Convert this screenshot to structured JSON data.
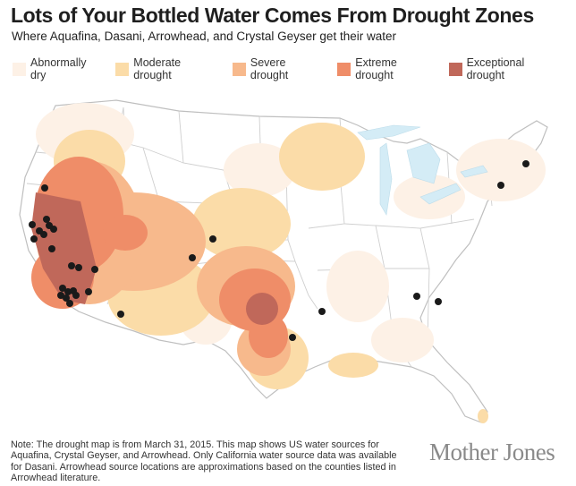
{
  "header": {
    "title": "Lots of Your Bottled Water Comes From Drought Zones",
    "subtitle": "Where Aquafina, Dasani, Arrowhead, and Crystal Geyser get their water"
  },
  "legend": [
    {
      "label": "Abnormally dry",
      "color": "#fdf1e6"
    },
    {
      "label": "Moderate drought",
      "color": "#fbdca8"
    },
    {
      "label": "Severe drought",
      "color": "#f7b98c"
    },
    {
      "label": "Extreme drought",
      "color": "#ef8d68"
    },
    {
      "label": "Exceptional drought",
      "color": "#c0685a"
    }
  ],
  "map": {
    "land_color": "#ffffff",
    "border_color": "#bfbfbf",
    "lake_color": "#d4ecf6",
    "source_marker_color": "#1a1a1a",
    "water_source_count": 33
  },
  "note": "Note: The drought map is from March 31, 2015. This map shows US water sources for Aquafina, Crystal Geyser, and Arrowhead. Only California water source data was available for Dasani. Arrowhead source locations are approximations based on the counties listed in Arrowhead literature.",
  "logo": "Mother Jones"
}
